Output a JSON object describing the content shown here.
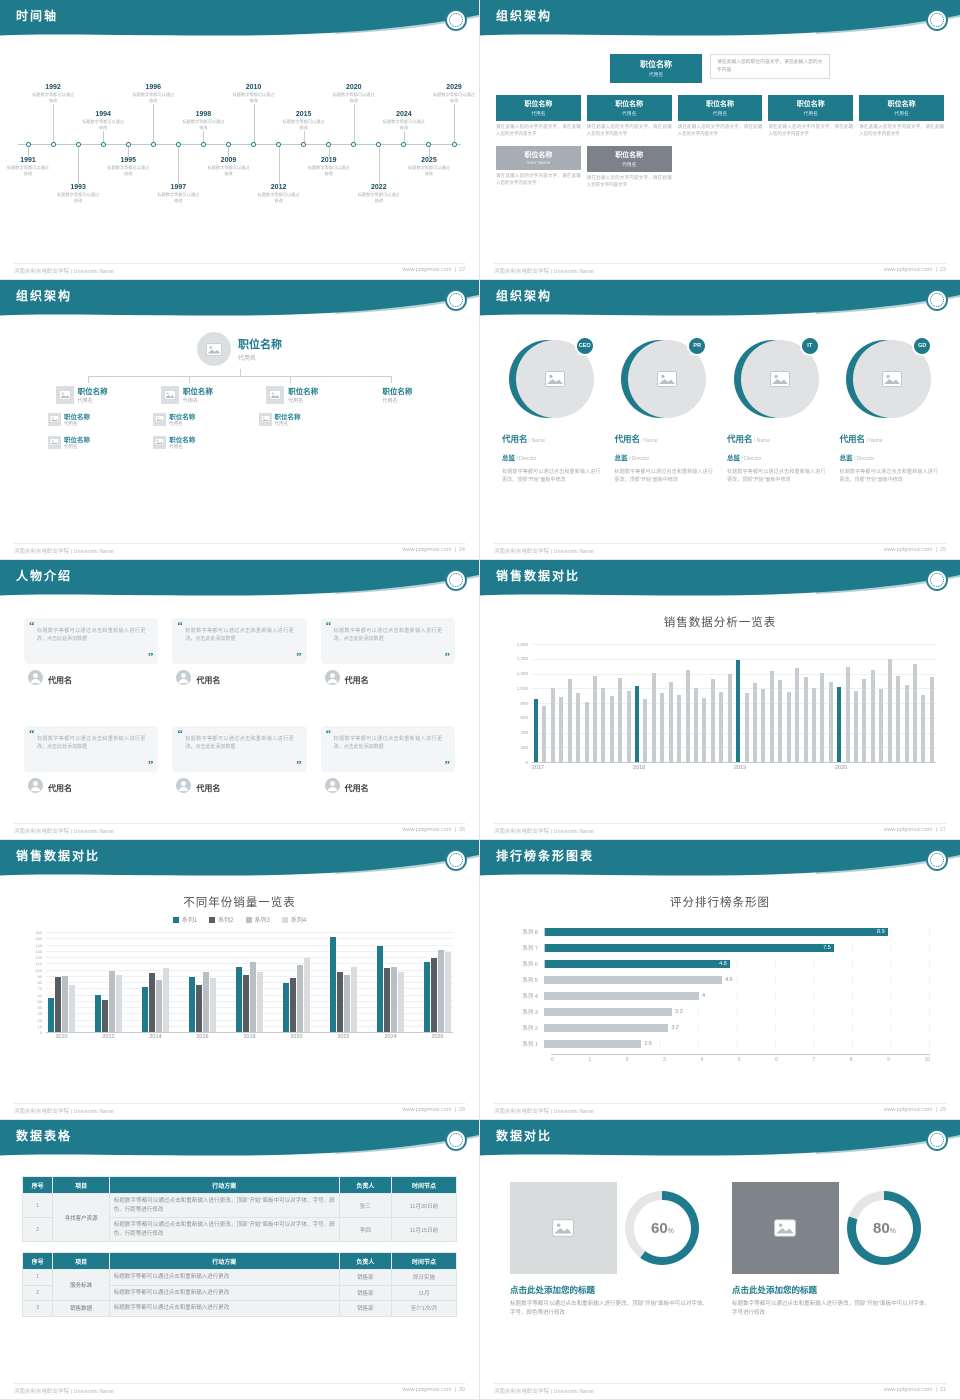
{
  "theme": {
    "accent": "#1f7a8c",
    "bar_gray": "#c7cdd1",
    "text_gray": "#a6abae",
    "dark_text": "#4e5357"
  },
  "footer": {
    "left": "河南水利水电职业学院 | University Name",
    "site": "www.pptgenius.com",
    "sep": "|"
  },
  "slides": {
    "timeline": {
      "title": "时间轴",
      "page": "22",
      "item_text": "标题数字等都可以通过修改",
      "items": [
        {
          "year": "1991",
          "side": "bottom",
          "tier": "near"
        },
        {
          "year": "1992",
          "side": "top",
          "tier": "far"
        },
        {
          "year": "1993",
          "side": "bottom",
          "tier": "far"
        },
        {
          "year": "1994",
          "side": "top",
          "tier": "near"
        },
        {
          "year": "1995",
          "side": "bottom",
          "tier": "near"
        },
        {
          "year": "1996",
          "side": "top",
          "tier": "far"
        },
        {
          "year": "1997",
          "side": "bottom",
          "tier": "far"
        },
        {
          "year": "1998",
          "side": "top",
          "tier": "near"
        },
        {
          "year": "2009",
          "side": "bottom",
          "tier": "near"
        },
        {
          "year": "2010",
          "side": "top",
          "tier": "far"
        },
        {
          "year": "2012",
          "side": "bottom",
          "tier": "far"
        },
        {
          "year": "2015",
          "side": "top",
          "tier": "near"
        },
        {
          "year": "2019",
          "side": "bottom",
          "tier": "near"
        },
        {
          "year": "2020",
          "side": "top",
          "tier": "far"
        },
        {
          "year": "2022",
          "side": "bottom",
          "tier": "far"
        },
        {
          "year": "2024",
          "side": "top",
          "tier": "near"
        },
        {
          "year": "2025",
          "side": "bottom",
          "tier": "near"
        },
        {
          "year": "2029",
          "side": "top",
          "tier": "far"
        }
      ]
    },
    "org1": {
      "title": "组织架构",
      "page": "23",
      "root": {
        "title": "职位名称",
        "name": "代用名"
      },
      "root_note": "请在此输入您的职位内容文字，请在此输入您的文字内容",
      "node_note": "请在此输入您的文字内容文字，请在此输入您的文字内容文字",
      "level2": [
        {
          "title": "职位名称",
          "name": "代用名"
        },
        {
          "title": "职位名称",
          "name": "代用名"
        },
        {
          "title": "职位名称",
          "name": "代用名"
        },
        {
          "title": "职位名称",
          "name": "代用名"
        },
        {
          "title": "职位名称",
          "name": "代用名"
        }
      ],
      "level3": [
        {
          "title": "职位名称",
          "name": "Your Name",
          "color": "#a7adb2"
        },
        {
          "title": "职位名称",
          "name": "代用名",
          "color": "#7c8288"
        }
      ]
    },
    "org2": {
      "title": "组织架构",
      "page": "24",
      "root": {
        "title": "职位名称",
        "name": "代用名"
      },
      "branches": [
        {
          "title": "职位名称",
          "name": "代用名",
          "icon": true,
          "children": [
            {
              "title": "职位名称",
              "name": "代用名"
            },
            {
              "title": "职位名称",
              "name": "代用名"
            }
          ]
        },
        {
          "title": "职位名称",
          "name": "代用名",
          "icon": true,
          "children": [
            {
              "title": "职位名称",
              "name": "代用名"
            },
            {
              "title": "职位名称",
              "name": "代用名"
            }
          ]
        },
        {
          "title": "职位名称",
          "name": "代用名",
          "icon": true,
          "children": [
            {
              "title": "职位名称",
              "name": "代用名"
            }
          ]
        },
        {
          "title": "职位名称",
          "name": "代用名",
          "icon": false,
          "children": []
        }
      ]
    },
    "org3": {
      "title": "组织架构",
      "page": "25",
      "desc": "标题数字等都可以通过点击和重新输入进行更改，顶部“开始”面板中修改",
      "members": [
        {
          "badge": "CEO",
          "name": "代用名",
          "name_en": "/ Name",
          "role": "总监",
          "role_en": "/ Director"
        },
        {
          "badge": "PR",
          "name": "代用名",
          "name_en": "/ Name",
          "role": "总监",
          "role_en": "/ Director"
        },
        {
          "badge": "IT",
          "name": "代用名",
          "name_en": "/ Name",
          "role": "总监",
          "role_en": "/ Director"
        },
        {
          "badge": "GD",
          "name": "代用名",
          "name_en": "/ Name",
          "role": "总监",
          "role_en": "/ Director"
        }
      ]
    },
    "people": {
      "title": "人物介绍",
      "page": "26",
      "quote_open": "“",
      "quote_close": "”",
      "quote": "标题数字等都可以通过点击和重新输入进行更改，点击此处添加数据",
      "cards": [
        {
          "name": "代用名"
        },
        {
          "name": "代用名"
        },
        {
          "name": "代用名"
        },
        {
          "name": "代用名"
        },
        {
          "name": "代用名"
        },
        {
          "name": "代用名"
        }
      ]
    },
    "sales1": {
      "title": "销售数据对比",
      "page": "27",
      "chart": {
        "type": "bar",
        "title": "销售数据分析一览表",
        "ylim": [
          0,
          1600
        ],
        "ytick_step": 200,
        "x_groups": [
          {
            "label": "2017",
            "index": 0
          },
          {
            "label": "2018",
            "index": 12
          },
          {
            "label": "2019",
            "index": 24
          },
          {
            "label": "2020",
            "index": 36
          }
        ],
        "values": [
          860,
          760,
          1010,
          880,
          1120,
          930,
          810,
          1170,
          1000,
          900,
          1140,
          970,
          1030,
          850,
          1210,
          940,
          1090,
          910,
          1250,
          1010,
          870,
          1130,
          950,
          1190,
          1380,
          930,
          1070,
          990,
          1230,
          1110,
          950,
          1270,
          1150,
          1010,
          1210,
          1090,
          1020,
          1290,
          970,
          1130,
          1250,
          990,
          1400,
          1170,
          1050,
          1330,
          910,
          1160
        ],
        "highlight_indexes": [
          0,
          12,
          24,
          36
        ],
        "bar_color": "#c7cdd1",
        "highlight_color": "#1f7a8c"
      }
    },
    "sales2": {
      "title": "销售数据对比",
      "page": "28",
      "chart": {
        "type": "grouped-bar",
        "title": "不同年份销量一览表",
        "categories": [
          "2010",
          "2012",
          "2014",
          "2016",
          "2018",
          "2020",
          "2022",
          "2024",
          "2026"
        ],
        "series": [
          {
            "name": "系列1",
            "color": "#1f7a8c",
            "values": [
              55,
              60,
              72,
              88,
              104,
              78,
              152,
              138,
              112
            ]
          },
          {
            "name": "系列2",
            "color": "#565d63",
            "values": [
              88,
              52,
              94,
              76,
              92,
              86,
              96,
              102,
              118
            ]
          },
          {
            "name": "系列3",
            "color": "#b9bfc3",
            "values": [
              90,
              98,
              84,
              96,
              112,
              108,
              92,
              104,
              132
            ]
          },
          {
            "name": "系列4",
            "color": "#dadde0",
            "values": [
              76,
              92,
              102,
              86,
              96,
              118,
              104,
              96,
              128
            ]
          }
        ],
        "ylim": [
          0,
          160
        ],
        "ytick_step": 10
      }
    },
    "ranking": {
      "title": "排行榜条形图表",
      "page": "29",
      "chart": {
        "type": "hbar",
        "title": "评分排行榜条形图",
        "categories": [
          "系列 8",
          "系列 7",
          "系列 6",
          "系列 5",
          "系列 4",
          "系列 3",
          "系列 2",
          "系列 1"
        ],
        "values": [
          8.9,
          7.5,
          4.8,
          4.6,
          4,
          3.3,
          3.2,
          2.5
        ],
        "highlight_count": 3,
        "xlim": [
          0,
          10
        ],
        "xtick_step": 1,
        "bar_color": "#c3c9cc",
        "highlight_color": "#1f7a8c"
      }
    },
    "tables": {
      "title": "数据表格",
      "page": "30",
      "headers": [
        "序号",
        "项目",
        "行动方案",
        "负责人",
        "时间节点"
      ],
      "table1": {
        "rows": [
          {
            "no": "1",
            "project": "寻找客户资源",
            "project_rowspan": 2,
            "plan": "标题数字等都可以通过点击和重新输入进行更改，顶部“开始”面板中可以对字体、字号、颜色、行距等进行修改",
            "owner": "张三",
            "time": "11月30日前"
          },
          {
            "no": "2",
            "plan": "标题数字等都可以通过点击和重新输入进行更改，顶部“开始”面板中可以对字体、字号、颜色、行距等进行修改",
            "owner": "李四",
            "time": "11月15日前"
          }
        ]
      },
      "table2": {
        "rows": [
          {
            "no": "1",
            "project": "服务标准",
            "project_rowspan": 2,
            "plan": "标题数字等都可以通过点击和重新输入进行更改",
            "owner": "销售部",
            "time": "即日实施"
          },
          {
            "no": "2",
            "plan": "标题数字等都可以通过点击和重新输入进行更改",
            "owner": "销售部",
            "time": "11月"
          },
          {
            "no": "3",
            "project": "销售数据",
            "project_rowspan": 1,
            "plan": "标题数字等都可以通过点击和重新输入进行更改",
            "owner": "销售部",
            "time": "至少1次/月"
          }
        ]
      }
    },
    "compare": {
      "title": "数据对比",
      "page": "31",
      "percent_sign": "%",
      "ring_color": "#1f7a8c",
      "ring_bg": "#e4e6e7",
      "panels": [
        {
          "percent": 60,
          "block_color": "#d9dcdd",
          "heading": "点击此处添加您的标题",
          "desc": "标题数字等都可以通过点击和重新输入进行更改，顶部“开始”面板中可以对字体、字号、颜色等进行修改"
        },
        {
          "percent": 80,
          "block_color": "#7e8489",
          "heading": "点击此处添加您的标题",
          "desc": "标题数字等都可以通过点击和重新输入进行更改，顶部“开始”面板中可以对字体、字号进行修改"
        }
      ]
    }
  }
}
